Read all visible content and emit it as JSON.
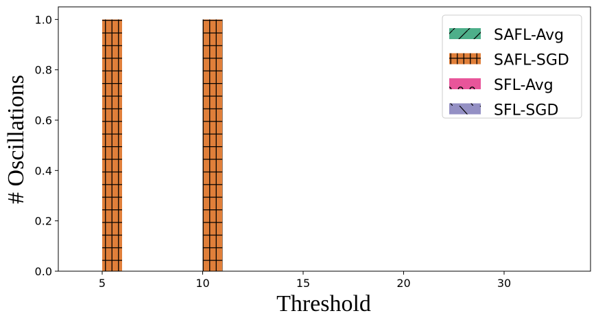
{
  "chart_data": {
    "type": "bar",
    "xlabel": "Threshold",
    "ylabel": "# Oscillations",
    "categories": [
      "5",
      "10",
      "15",
      "20",
      "30"
    ],
    "ylim": [
      0,
      1.05
    ],
    "yticks": [
      "0.0",
      "0.2",
      "0.4",
      "0.6",
      "0.8",
      "1.0"
    ],
    "series": [
      {
        "name": "SAFL-Avg",
        "values": [
          0,
          0,
          0,
          0,
          0
        ],
        "color": "#4daf8a",
        "hatch": "forward-slash"
      },
      {
        "name": "SAFL-SGD",
        "values": [
          1,
          1,
          0,
          0,
          0
        ],
        "color": "#e07f3a",
        "hatch": "grid"
      },
      {
        "name": "SFL-Avg",
        "values": [
          0,
          0,
          0,
          0,
          0
        ],
        "color": "#e8559a",
        "hatch": "circles"
      },
      {
        "name": "SFL-SGD",
        "values": [
          0,
          0,
          0,
          0,
          0
        ],
        "color": "#9490c4",
        "hatch": "back-slash"
      }
    ],
    "grid": false,
    "legend_position": "top-right"
  }
}
